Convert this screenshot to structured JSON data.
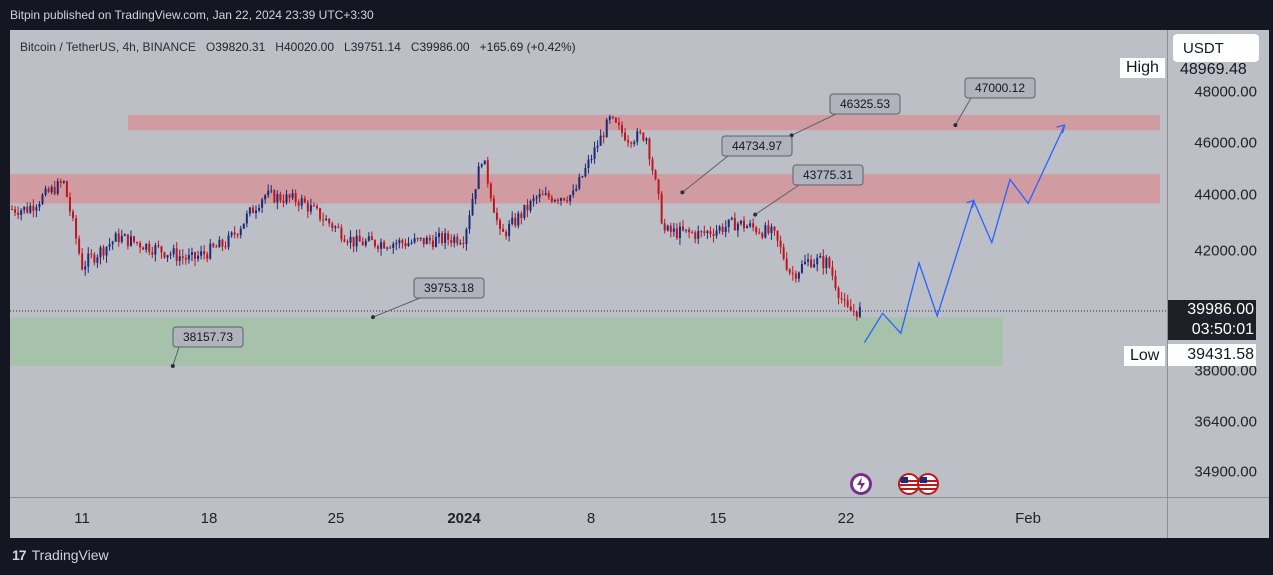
{
  "header": {
    "published": "Bitpin published on TradingView.com, Jan 22, 2024 23:39 UTC+3:30"
  },
  "legend": {
    "symbol": "Bitcoin / TetherUS, 4h, BINANCE",
    "o_label": "O",
    "o": "39820.31",
    "h_label": "H",
    "h": "40020.00",
    "l_label": "L",
    "l": "39751.14",
    "c_label": "C",
    "c": "39986.00",
    "change": "+165.69 (+0.42%)"
  },
  "price_axis": {
    "currency": "USDT",
    "high_label": "High",
    "high_value": "48969.48",
    "low_label": "Low",
    "low_value": "39431.58",
    "last_price": "39986.00",
    "countdown": "03:50:01",
    "ticks": [
      "48000.00",
      "46000.00",
      "44000.00",
      "42000.00",
      "38000.00",
      "36400.00",
      "34900.00"
    ]
  },
  "time_axis": {
    "ticks": [
      "11",
      "18",
      "25",
      "2024",
      "8",
      "15",
      "22",
      "Feb"
    ]
  },
  "annotations": [
    "47000.12",
    "46325.53",
    "44734.97",
    "43775.31",
    "39753.18",
    "38157.73"
  ],
  "footer": {
    "brand": "TradingView",
    "logo": "tradingview-logo-icon"
  },
  "colors": {
    "up": "#1d2a78",
    "down": "#c0151f",
    "resistance_zone": "#d4959b",
    "support_zone": "#a2c2a4",
    "projection": "#2962ff"
  },
  "chart_data": {
    "type": "candlestick",
    "title": "Bitcoin / TetherUS, 4h, BINANCE",
    "x_ticks": [
      "11",
      "18",
      "25",
      "2024",
      "8",
      "15",
      "22",
      "Feb"
    ],
    "y_ticks": [
      48000,
      46000,
      44000,
      42000,
      38000,
      36400,
      34900
    ],
    "zones": [
      {
        "kind": "resistance",
        "from": 46500,
        "to": 47100
      },
      {
        "kind": "resistance",
        "from": 43700,
        "to": 44800
      },
      {
        "kind": "support",
        "from": 38160,
        "to": 39750
      }
    ],
    "keypoints": [
      {
        "t": "Dec 8",
        "price": 43500
      },
      {
        "t": "Dec 10",
        "price": 44500
      },
      {
        "t": "Dec 11",
        "price": 41500
      },
      {
        "t": "Dec 13",
        "price": 42500
      },
      {
        "t": "Dec 17",
        "price": 41700
      },
      {
        "t": "Dec 19",
        "price": 42300
      },
      {
        "t": "Dec 21",
        "price": 44000
      },
      {
        "t": "Dec 23",
        "price": 43800
      },
      {
        "t": "Dec 26",
        "price": 42300
      },
      {
        "t": "Dec 29",
        "price": 42300
      },
      {
        "t": "Jan 1",
        "price": 42500
      },
      {
        "t": "Jan 2",
        "price": 45500
      },
      {
        "t": "Jan 3",
        "price": 42500
      },
      {
        "t": "Jan 5",
        "price": 43900
      },
      {
        "t": "Jan 7",
        "price": 44000
      },
      {
        "t": "Jan 9",
        "price": 46900
      },
      {
        "t": "Jan 10",
        "price": 46200
      },
      {
        "t": "Jan 11",
        "price": 46300
      },
      {
        "t": "Jan 12",
        "price": 42700
      },
      {
        "t": "Jan 14",
        "price": 42600
      },
      {
        "t": "Jan 16",
        "price": 43000
      },
      {
        "t": "Jan 18",
        "price": 42600
      },
      {
        "t": "Jan 19",
        "price": 41200
      },
      {
        "t": "Jan 20",
        "price": 41700
      },
      {
        "t": "Jan 21",
        "price": 41600
      },
      {
        "t": "Jan 22",
        "price": 39986
      }
    ],
    "projection": [
      {
        "t": "Jan 23",
        "price": 38900
      },
      {
        "t": "Jan 24",
        "price": 39900
      },
      {
        "t": "Jan 25",
        "price": 39200
      },
      {
        "t": "Jan 26",
        "price": 41600
      },
      {
        "t": "Jan 27",
        "price": 39800
      },
      {
        "t": "Jan 29",
        "price": 43800
      },
      {
        "t": "Jan 30",
        "price": 42300
      },
      {
        "t": "Jan 31",
        "price": 44600
      },
      {
        "t": "Feb 1",
        "price": 43700
      },
      {
        "t": "Feb 3",
        "price": 46700
      }
    ],
    "last_price": 39986.0,
    "high": 48969.48,
    "low": 39431.58
  }
}
